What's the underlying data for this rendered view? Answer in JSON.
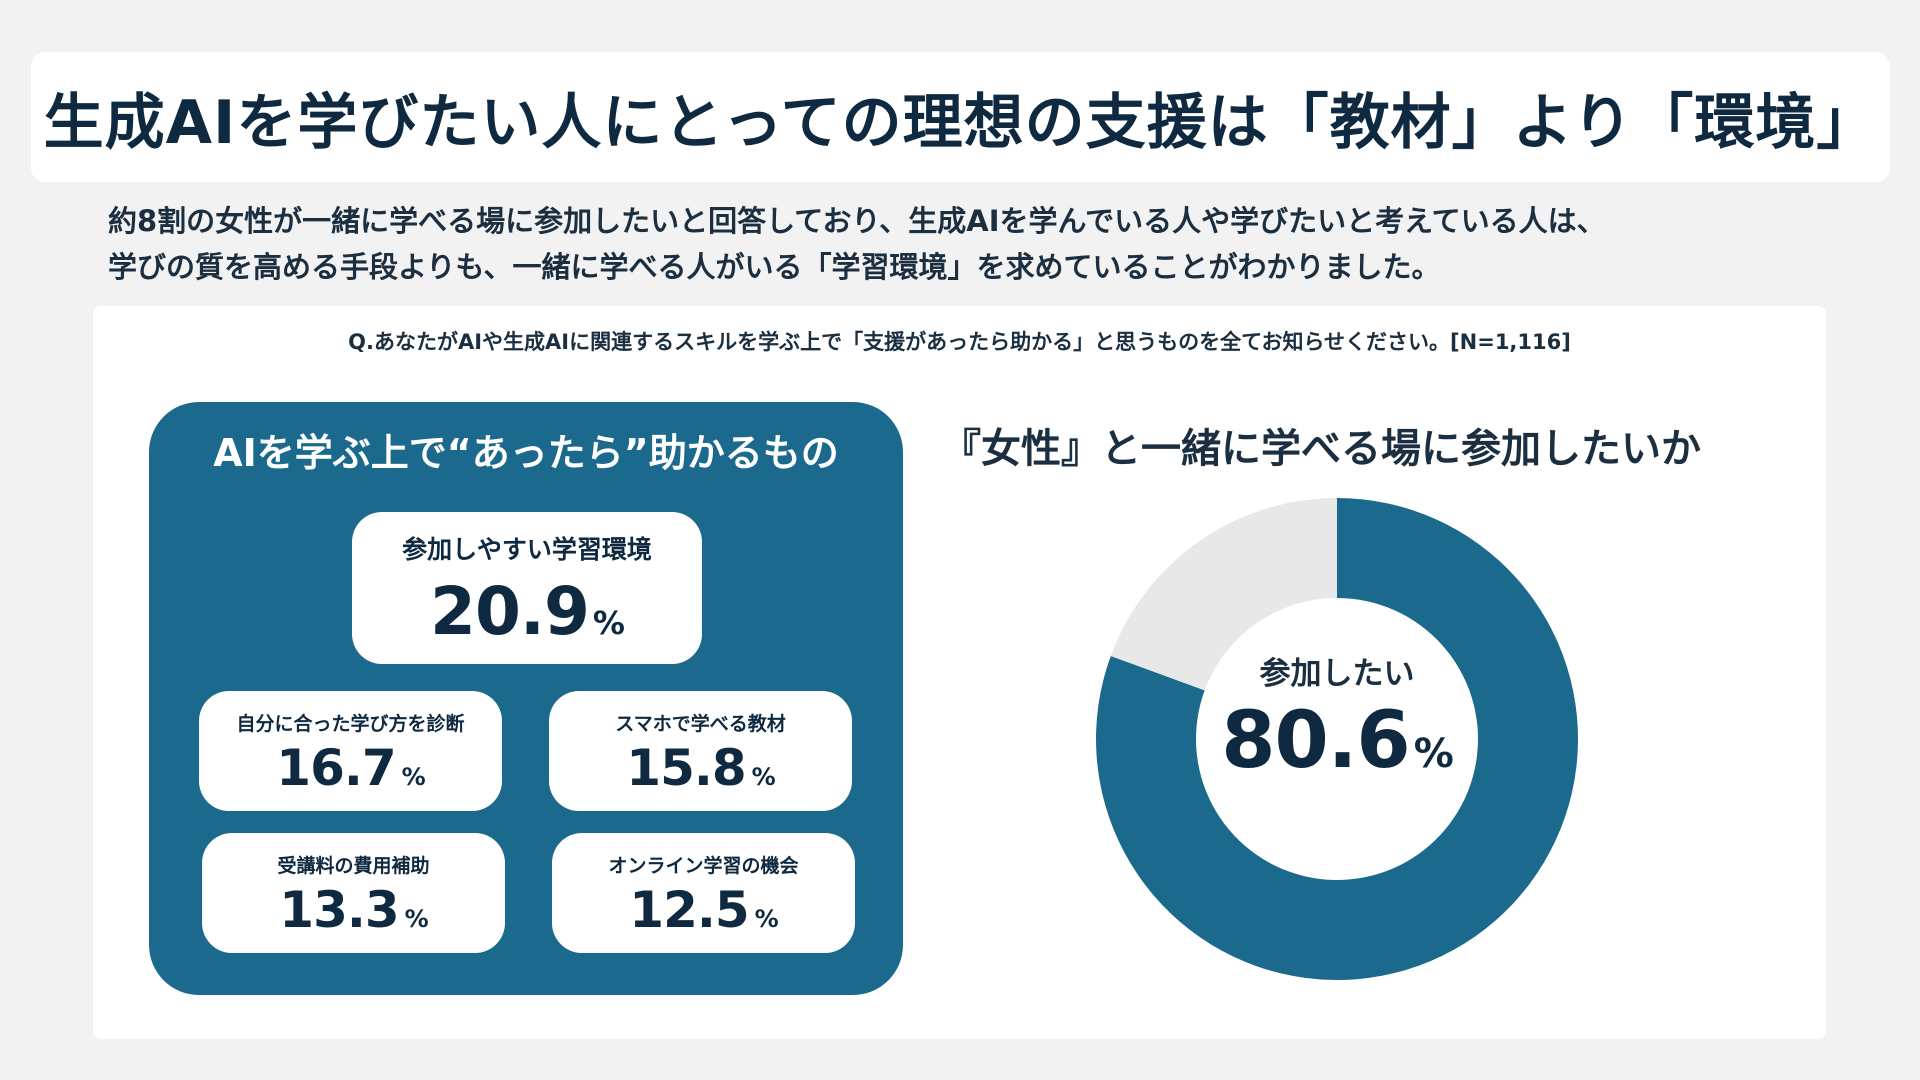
{
  "title": "生成AIを学びたい人にとっての理想の支援は「教材」より「環境」",
  "summary": {
    "line1": "約8割の女性が一緒に学べる場に参加したいと回答しており、生成AIを学んでいる人や学びたいと考えている人は、",
    "line2": "学びの質を高める手段よりも、一緒に学べる人がいる「学習環境」を求めていることがわかりました。"
  },
  "question": "Q.あなたがAIや生成AIに関連するスキルを学ぶ上で「支援があったら助かる」と思うものを全てお知らせください。[N=1,116]",
  "left": {
    "title": "AIを学ぶ上で“あったら”助かるもの",
    "unit": "%"
  },
  "right": {
    "title": "『女性』と一緒に学べる場に参加したいか",
    "center_label": "参加したい",
    "center_value": "80.6",
    "unit": "%"
  },
  "colors": {
    "primary": "#1b6a8d",
    "remainder": "#e8e8e8",
    "text": "#0f2a40"
  },
  "chart_data": [
    {
      "type": "bar",
      "title": "AIを学ぶ上で“あったら”助かるもの",
      "categories": [
        "参加しやすい学習環境",
        "自分に合った学び方を診断",
        "スマホで学べる教材",
        "受講料の費用補助",
        "オンライン学習の機会"
      ],
      "values": [
        20.9,
        16.7,
        15.8,
        13.3,
        12.5
      ],
      "unit": "%"
    },
    {
      "type": "pie",
      "title": "『女性』と一緒に学べる場に参加したいか",
      "categories": [
        "参加したい",
        ""
      ],
      "values": [
        80.6,
        19.4
      ],
      "unit": "%"
    }
  ]
}
